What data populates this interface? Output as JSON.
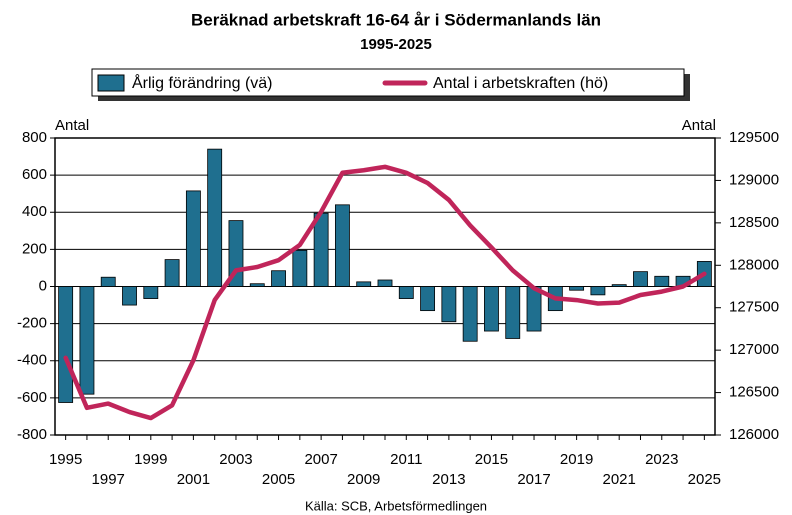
{
  "chart_data": {
    "type": "bar",
    "title": "Beräknad arbetskraft 16-64 år i Södermanlands län",
    "subtitle": "1995-2025",
    "y_label": "Antal",
    "y2_label": "Antal",
    "source": "Källa: SCB, Arbetsförmedlingen",
    "categories": [
      "1995",
      null,
      "1997",
      null,
      "1999",
      null,
      "2001",
      null,
      "2003",
      null,
      "2005",
      null,
      "2007",
      null,
      "2009",
      null,
      "2011",
      null,
      "2013",
      null,
      "2015",
      null,
      "2017",
      null,
      "2019",
      null,
      "2021",
      null,
      "2023",
      null,
      "2025"
    ],
    "series": [
      {
        "name": "Årlig förändring (vä)",
        "type": "bar",
        "color": "#1f6f8f",
        "values": [
          -625,
          -580,
          50,
          -100,
          -65,
          145,
          515,
          740,
          355,
          15,
          85,
          195,
          395,
          440,
          25,
          35,
          -65,
          -130,
          -190,
          -295,
          -240,
          -280,
          -240,
          -130,
          -20,
          -45,
          10,
          80,
          55,
          55,
          135
        ]
      },
      {
        "name": "Antal i arbetskraften (hö)",
        "type": "line",
        "axis": "y2",
        "color": "#c0255a",
        "values": [
          126910,
          126320,
          126370,
          126270,
          126200,
          126350,
          126880,
          127590,
          127940,
          127980,
          128060,
          128240,
          128630,
          129090,
          129120,
          129160,
          129090,
          128970,
          128770,
          128470,
          128210,
          127940,
          127730,
          127610,
          127590,
          127550,
          127560,
          127650,
          127690,
          127750,
          127900
        ]
      }
    ],
    "ylim": [
      -800,
      800
    ],
    "yticks": [
      -800,
      -600,
      -400,
      -200,
      0,
      200,
      400,
      600,
      800
    ],
    "y2lim": [
      126000,
      129500
    ],
    "y2ticks": [
      126000,
      126500,
      127000,
      127500,
      128000,
      128500,
      129000,
      129500
    ],
    "grid": true
  }
}
